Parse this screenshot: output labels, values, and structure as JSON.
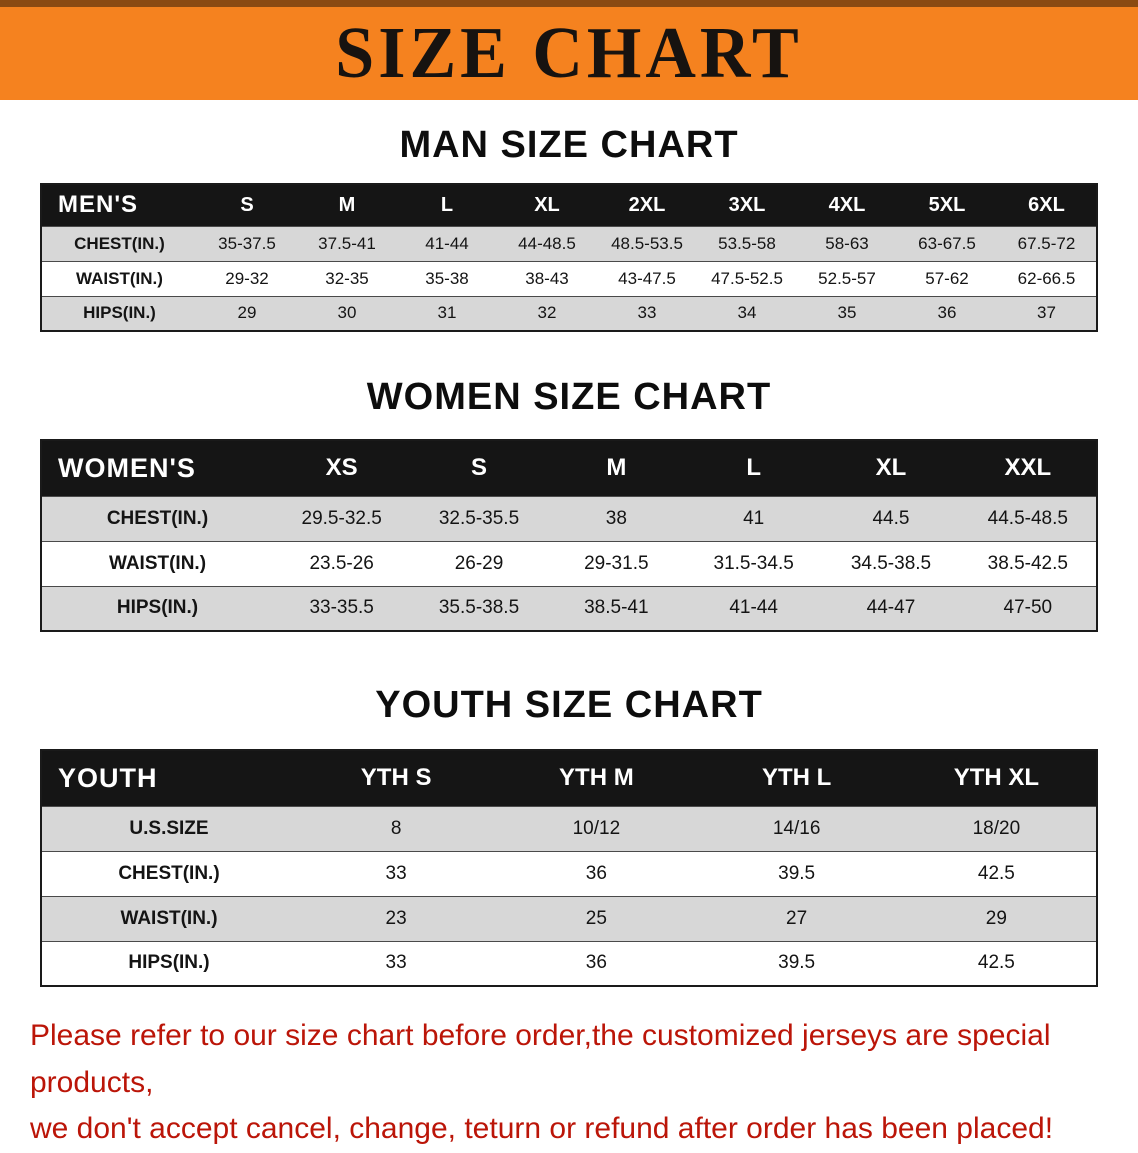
{
  "banner": {
    "title": "SIZE CHART",
    "background_color": "#f5821f",
    "text_color": "#171310"
  },
  "sections": [
    {
      "id": "men",
      "heading": "MAN SIZE CHART",
      "table": {
        "header": [
          "MEN'S",
          "S",
          "M",
          "L",
          "XL",
          "2XL",
          "3XL",
          "4XL",
          "5XL",
          "6XL"
        ],
        "rows": [
          [
            "CHEST(IN.)",
            "35-37.5",
            "37.5-41",
            "41-44",
            "44-48.5",
            "48.5-53.5",
            "53.5-58",
            "58-63",
            "63-67.5",
            "67.5-72"
          ],
          [
            "WAIST(IN.)",
            "29-32",
            "32-35",
            "35-38",
            "38-43",
            "43-47.5",
            "47.5-52.5",
            "52.5-57",
            "57-62",
            "62-66.5"
          ],
          [
            "HIPS(IN.)",
            "29",
            "30",
            "31",
            "32",
            "33",
            "34",
            "35",
            "36",
            "37"
          ]
        ]
      }
    },
    {
      "id": "women",
      "heading": "WOMEN SIZE CHART",
      "table": {
        "header": [
          "WOMEN'S",
          "XS",
          "S",
          "M",
          "L",
          "XL",
          "XXL"
        ],
        "rows": [
          [
            "CHEST(IN.)",
            "29.5-32.5",
            "32.5-35.5",
            "38",
            "41",
            "44.5",
            "44.5-48.5"
          ],
          [
            "WAIST(IN.)",
            "23.5-26",
            "26-29",
            "29-31.5",
            "31.5-34.5",
            "34.5-38.5",
            "38.5-42.5"
          ],
          [
            "HIPS(IN.)",
            "33-35.5",
            "35.5-38.5",
            "38.5-41",
            "41-44",
            "44-47",
            "47-50"
          ]
        ]
      }
    },
    {
      "id": "youth",
      "heading": "YOUTH SIZE CHART",
      "table": {
        "header": [
          "YOUTH",
          "YTH S",
          "YTH M",
          "YTH L",
          "YTH XL"
        ],
        "rows": [
          [
            "U.S.SIZE",
            "8",
            "10/12",
            "14/16",
            "18/20"
          ],
          [
            "CHEST(IN.)",
            "33",
            "36",
            "39.5",
            "42.5"
          ],
          [
            "WAIST(IN.)",
            "23",
            "25",
            "27",
            "29"
          ],
          [
            "HIPS(IN.)",
            "33",
            "36",
            "39.5",
            "42.5"
          ]
        ]
      }
    }
  ],
  "disclaimer": {
    "line1": "Please refer to our size chart before order,the customized jerseys are special products,",
    "line2": "we don't accept cancel, change, teturn or refund after order has been placed!",
    "text_color": "#bb1508"
  },
  "table_style": {
    "header_background": "#151515",
    "header_text_color": "#ffffff",
    "stripe_color": "#d7d7d7"
  }
}
